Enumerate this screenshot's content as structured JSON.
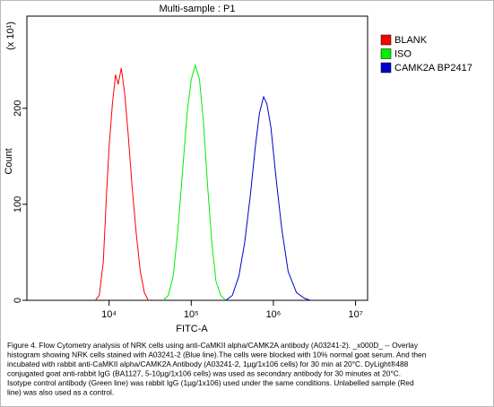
{
  "chart_data": {
    "type": "line",
    "title": "Multi-sample : P1",
    "x_label": "FITC-A",
    "y_label": "Count",
    "y_multiplier": "(x 10¹)",
    "log_x": true,
    "legend": "right",
    "xlim": [
      1000,
      14000000
    ],
    "xticks": [
      {
        "value": 10000,
        "label": "10⁴"
      },
      {
        "value": 100000,
        "label": "10⁵"
      },
      {
        "value": 1000000,
        "label": "10⁶"
      },
      {
        "value": 10000000,
        "label": "10⁷"
      }
    ],
    "ylim": [
      0,
      296
    ],
    "yticks": [
      0,
      100,
      200
    ],
    "series": [
      {
        "name": "BLANK",
        "color": "#ff0000",
        "x": [
          6800,
          7600,
          8500,
          9300,
          10000,
          11000,
          12000,
          12900,
          14100,
          15500,
          17000,
          19000,
          21400,
          24000,
          26900,
          30000
        ],
        "values": [
          0,
          5,
          40,
          110,
          160,
          205,
          235,
          225,
          242,
          215,
          175,
          120,
          70,
          30,
          8,
          0
        ]
      },
      {
        "name": "ISO",
        "color": "#00ee00",
        "x": [
          45700,
          52500,
          60300,
          69200,
          79400,
          89100,
          100000,
          112000,
          126000,
          141000,
          158000,
          178000,
          200000,
          229000,
          263000
        ],
        "values": [
          0,
          5,
          25,
          75,
          140,
          195,
          230,
          245,
          230,
          185,
          120,
          60,
          20,
          5,
          0
        ]
      },
      {
        "name": "CAMK2A BP2417",
        "color": "#0000cc",
        "x": [
          263000,
          316000,
          380000,
          447000,
          525000,
          603000,
          676000,
          759000,
          832000,
          933000,
          1070000,
          1260000,
          1510000,
          1910000,
          2400000,
          2820000
        ],
        "values": [
          0,
          5,
          25,
          60,
          110,
          160,
          195,
          212,
          205,
          180,
          130,
          75,
          30,
          8,
          2,
          0
        ]
      }
    ]
  },
  "caption": [
    "Figure 4. Flow Cytometry analysis of NRK cells using anti-CaMKII alpha/CAMK2A antibody (A03241-2). _x000D_ -- Overlay",
    "histogram showing NRK cells stained with A03241-2 (Blue line).The cells were blocked with 10% normal goat serum. And then",
    "incubated with rabbit anti-CaMKII alpha/CAMK2A Antibody (A03241-2, 1µg/1x106 cells) for 30 min at 20°C. DyLight®488",
    "conjugated goat anti-rabbit IgG (BA1127, 5-10µg/1x106 cells) was used as secondary antibody for 30 minutes at 20°C.",
    "Isotype control antibody (Green line) was rabbit IgG (1µg/1x106) used under the same conditions. Unlabelled sample (Red",
    "line) was also used as a control."
  ]
}
